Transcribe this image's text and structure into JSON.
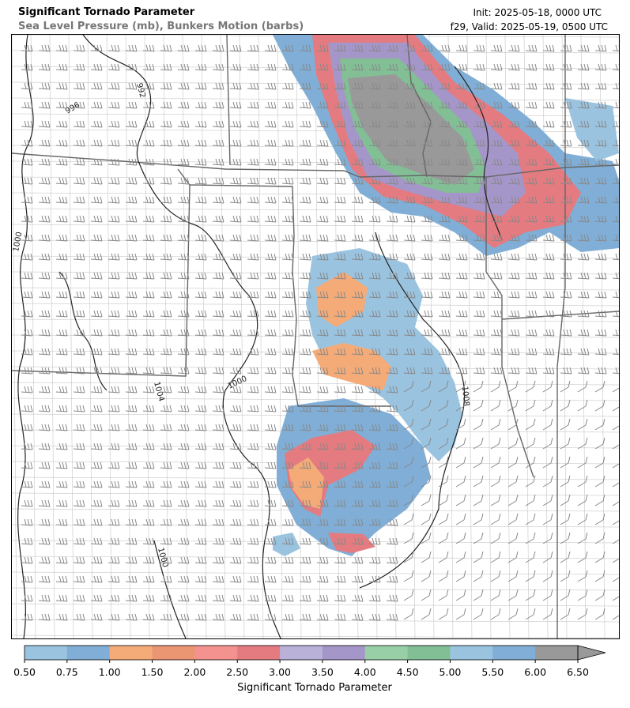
{
  "header": {
    "title": "Significant Tornado Parameter",
    "subtitle": "Sea Level Pressure (mb), Bunkers Motion (barbs)",
    "init": "Init: 2025-05-18, 0000 UTC",
    "valid": "f29, Valid: 2025-05-19, 0500 UTC"
  },
  "isobar_labels": [
    "992",
    "996",
    "1000",
    "1004",
    "1008"
  ],
  "colorbar": {
    "title": "Significant Tornado Parameter",
    "ticks": [
      "0.50",
      "0.75",
      "1.00",
      "1.50",
      "2.00",
      "2.50",
      "3.00",
      "3.50",
      "4.00",
      "4.50",
      "5.00",
      "5.50",
      "6.00",
      "6.50"
    ],
    "colors": [
      "#9ac3e0",
      "#80aed6",
      "#f5ab78",
      "#ea9672",
      "#f3928f",
      "#e47b80",
      "#b9b1d8",
      "#a596c9",
      "#98cfa7",
      "#82bf95",
      "#9ac3e0",
      "#80aed6",
      "#999999"
    ],
    "extend": "max"
  },
  "colors": {
    "background": "#ffffff",
    "state_border": "#666666",
    "county_border": "#bbbbbb",
    "isobar": "#222222",
    "barb": "#888888"
  }
}
